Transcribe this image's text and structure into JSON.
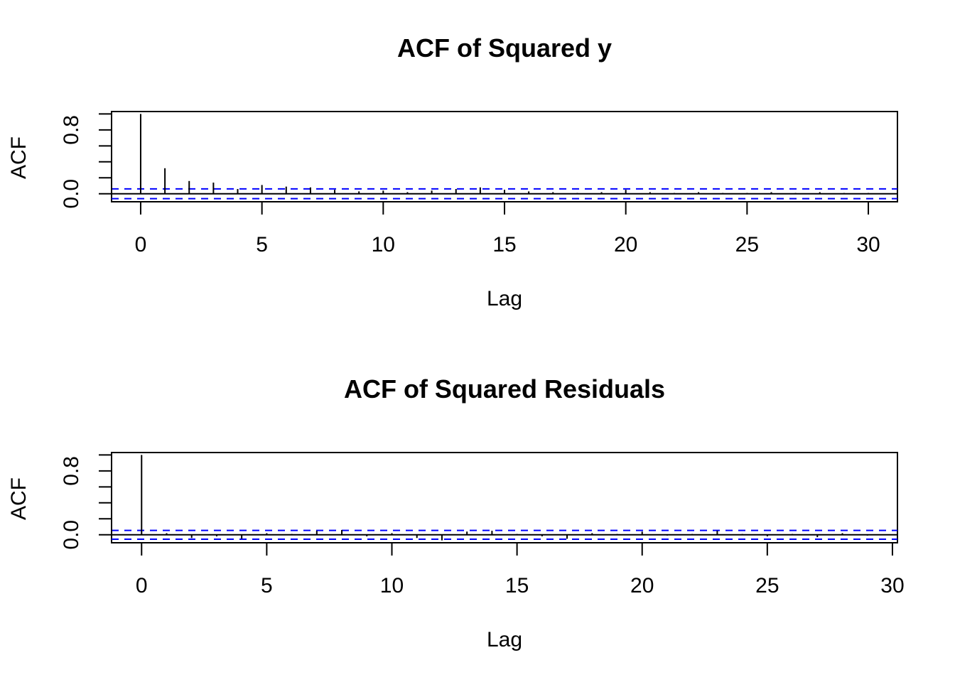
{
  "chart_data": [
    {
      "type": "bar",
      "title": "ACF of Squared y",
      "xlabel": "Lag",
      "ylabel": "ACF",
      "xlim": [
        -1.2,
        31.2
      ],
      "ylim": [
        -0.1,
        1.03
      ],
      "x_ticks": [
        0,
        5,
        10,
        15,
        20,
        25,
        30
      ],
      "x_tick_labels": [
        "0",
        "5",
        "10",
        "15",
        "20",
        "25",
        "30"
      ],
      "y_ticks": [
        0.0,
        0.2,
        0.4,
        0.6,
        0.8,
        1.0
      ],
      "y_tick_labels": [
        "0.0",
        "",
        "",
        "",
        "0.8",
        ""
      ],
      "confidence_bound": 0.061,
      "confidence_color": "#0000ff",
      "lags": [
        0,
        1,
        2,
        3,
        4,
        5,
        6,
        7,
        8,
        9,
        10,
        11,
        12,
        13,
        14,
        15,
        16,
        17,
        18,
        19,
        20,
        21,
        22,
        23,
        24,
        25,
        26,
        27,
        28,
        29,
        30
      ],
      "values": [
        1.0,
        0.32,
        0.16,
        0.14,
        0.06,
        0.11,
        0.09,
        0.08,
        0.05,
        0.03,
        0.04,
        0.02,
        0.04,
        0.06,
        0.08,
        0.05,
        0.03,
        0.02,
        0.01,
        0.02,
        0.05,
        0.02,
        0.01,
        0.02,
        0.01,
        0.01,
        0.02,
        0.01,
        0.02,
        0.01,
        0.01
      ]
    },
    {
      "type": "bar",
      "title": "ACF of Squared Residuals",
      "xlabel": "Lag",
      "ylabel": "ACF",
      "xlim": [
        -1.2,
        30.2
      ],
      "ylim": [
        -0.1,
        1.03
      ],
      "x_ticks": [
        0,
        5,
        10,
        15,
        20,
        25,
        30
      ],
      "x_tick_labels": [
        "0",
        "5",
        "10",
        "15",
        "20",
        "25",
        "30"
      ],
      "y_ticks": [
        0.0,
        0.2,
        0.4,
        0.6,
        0.8,
        1.0
      ],
      "y_tick_labels": [
        "0.0",
        "",
        "",
        "",
        "0.8",
        ""
      ],
      "confidence_bound": 0.055,
      "confidence_color": "#0000ff",
      "lags": [
        0,
        1,
        2,
        3,
        4,
        5,
        6,
        7,
        8,
        9,
        10,
        11,
        12,
        13,
        14,
        15,
        16,
        17,
        18,
        19,
        20,
        21,
        22,
        23,
        24,
        25,
        26,
        27,
        28,
        29
      ],
      "values": [
        1.0,
        0.02,
        -0.04,
        -0.02,
        -0.05,
        0.02,
        0.01,
        0.05,
        0.06,
        -0.02,
        0.02,
        -0.04,
        -0.07,
        0.04,
        0.05,
        0.01,
        -0.02,
        -0.05,
        0.02,
        0.01,
        0.04,
        -0.01,
        0.01,
        0.05,
        0.01,
        -0.02,
        0.01,
        -0.03,
        0.02,
        -0.01
      ]
    }
  ]
}
